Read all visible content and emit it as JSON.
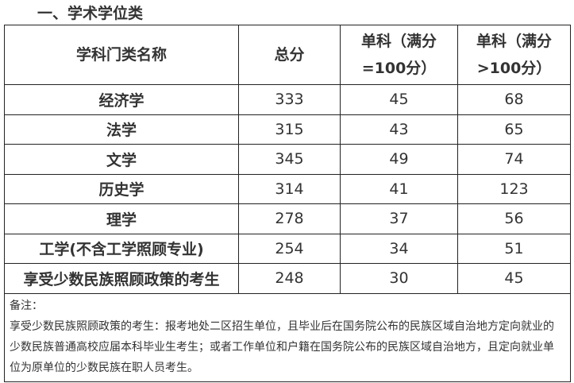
{
  "title": "一、学术学位类",
  "headers": [
    "学科门类名称",
    "总分",
    "单科（满分=100分）",
    "单科（满分>100分）"
  ],
  "rows": [
    [
      "经济学",
      "333",
      "45",
      "68"
    ],
    [
      "法学",
      "315",
      "43",
      "65"
    ],
    [
      "文学",
      "345",
      "49",
      "74"
    ],
    [
      "历史学",
      "314",
      "41",
      "123"
    ],
    [
      "理学",
      "278",
      "37",
      "56"
    ],
    [
      "工学(不含工学照顾专业)",
      "254",
      "34",
      "51"
    ],
    [
      "享受少数民族照顾政策的考生",
      "248",
      "30",
      "45"
    ]
  ],
  "note": {
    "label": "备注：",
    "text": "享受少数民族照顾政策的考生：报考地处二区招生单位，且毕业后在国务院公布的民族区域自治地方定向就业的少数民族普通高校应届本科毕业生考生；或者工作单位和户籍在国务院公布的民族区域自治地方，且定向就业单位为原单位的少数民族在职人员考生。"
  }
}
